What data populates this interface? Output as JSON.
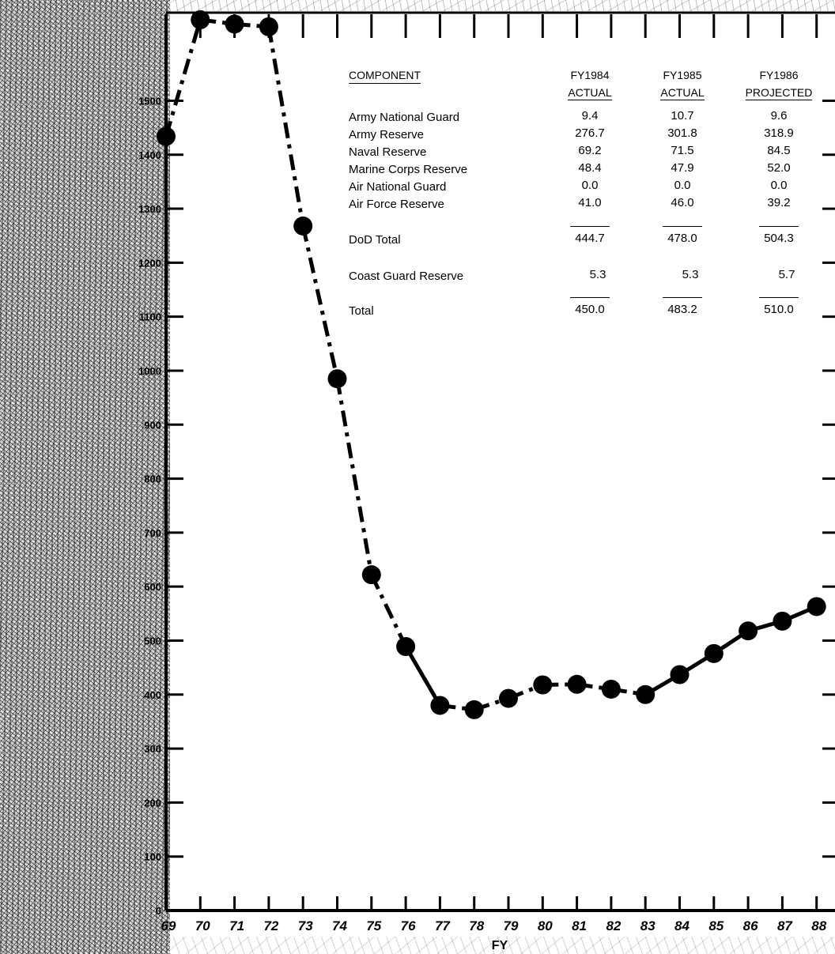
{
  "chart_data": {
    "type": "line",
    "title": "",
    "xlabel": "FY",
    "ylabel": "",
    "x": [
      "69",
      "70",
      "71",
      "72",
      "73",
      "74",
      "75",
      "76",
      "77",
      "78",
      "79",
      "80",
      "81",
      "82",
      "83",
      "84",
      "85",
      "86",
      "87",
      "88"
    ],
    "values": [
      1434,
      1650,
      1642,
      1637,
      1268,
      985,
      622,
      489,
      380,
      372,
      393,
      418,
      419,
      410,
      400,
      437,
      476,
      518,
      536,
      563
    ],
    "ylim": [
      0,
      1650
    ],
    "y_ticks": [
      0,
      100,
      200,
      300,
      400,
      500,
      600,
      700,
      800,
      900,
      1000,
      1100,
      1200,
      1300,
      1400,
      1500
    ],
    "grid": false,
    "line_style": "dash-dot with filled circle markers (solid segments in later years)",
    "color": "#000000"
  },
  "table": {
    "headers": [
      {
        "line1": "COMPONENT",
        "line2": ""
      },
      {
        "line1": "FY1984",
        "line2": "ACTUAL"
      },
      {
        "line1": "FY1985",
        "line2": "ACTUAL"
      },
      {
        "line1": "FY1986",
        "line2": "PROJECTED"
      }
    ],
    "rows": [
      {
        "label": "Army National Guard",
        "values": [
          "9.4",
          "10.7",
          "9.6"
        ]
      },
      {
        "label": "Army Reserve",
        "values": [
          "276.7",
          "301.8",
          "318.9"
        ]
      },
      {
        "label": "Naval Reserve",
        "values": [
          "69.2",
          "71.5",
          "84.5"
        ]
      },
      {
        "label": "Marine Corps Reserve",
        "values": [
          "48.4",
          "47.9",
          "52.0"
        ]
      },
      {
        "label": "Air National Guard",
        "values": [
          "0.0",
          "0.0",
          "0.0"
        ]
      },
      {
        "label": "Air Force Reserve",
        "values": [
          "41.0",
          "46.0",
          "39.2"
        ]
      }
    ],
    "subtotal": {
      "label": "DoD Total",
      "values": [
        "444.7",
        "478.0",
        "504.3"
      ]
    },
    "coast_guard": {
      "label": "Coast Guard Reserve",
      "values": [
        "5.3",
        "5.3",
        "5.7"
      ]
    },
    "total": {
      "label": "Total",
      "values": [
        "450.0",
        "483.2",
        "510.0"
      ]
    }
  }
}
